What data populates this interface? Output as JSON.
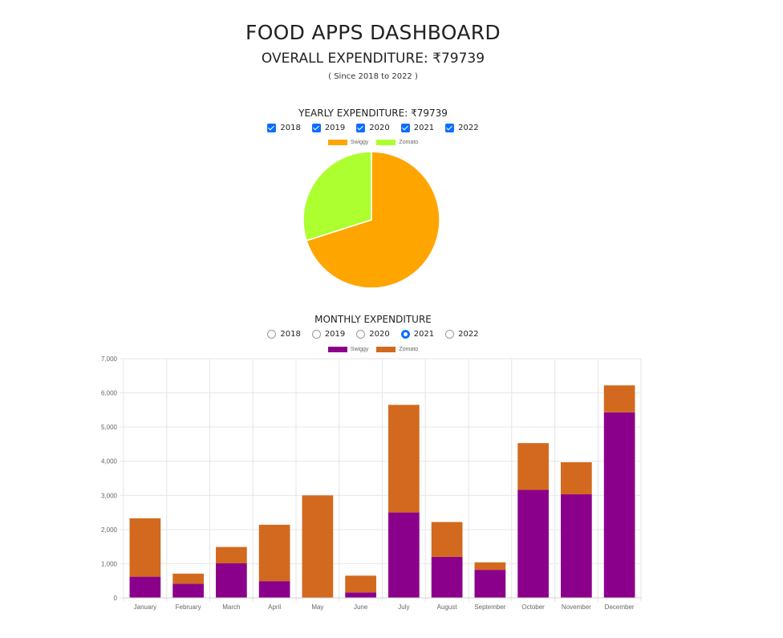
{
  "header": {
    "title": "FOOD APPS DASHBOARD",
    "overall": "OVERALL EXPENDITURE: ₹79739",
    "since": "( Since 2018 to 2022 )"
  },
  "yearly": {
    "title": "YEARLY EXPENDITURE: ₹79739",
    "years": [
      "2018",
      "2019",
      "2020",
      "2021",
      "2022"
    ],
    "checked": [
      true,
      true,
      true,
      true,
      true
    ]
  },
  "monthly": {
    "title": "MONTHLY EXPENDITURE",
    "years": [
      "2018",
      "2019",
      "2020",
      "2021",
      "2022"
    ],
    "selected": "2021"
  },
  "chart_data": [
    {
      "type": "pie",
      "labels": [
        "Swiggy",
        "Zomato"
      ],
      "values": [
        55880,
        23859
      ],
      "colors": [
        "#FFA500",
        "#ADFF2F"
      ],
      "legend": "top"
    },
    {
      "type": "bar",
      "stacked": true,
      "categories": [
        "January",
        "February",
        "March",
        "April",
        "May",
        "June",
        "July",
        "August",
        "September",
        "October",
        "November",
        "December"
      ],
      "series": [
        {
          "name": "Swiggy",
          "color": "#8B008B",
          "values": [
            620,
            410,
            1010,
            490,
            0,
            160,
            2500,
            1200,
            820,
            3160,
            3030,
            5430
          ]
        },
        {
          "name": "Zomato",
          "color": "#D2691E",
          "values": [
            1710,
            300,
            480,
            1650,
            3000,
            490,
            3150,
            1020,
            220,
            1370,
            940,
            790
          ]
        }
      ],
      "ylim": [
        0,
        7000
      ],
      "yticks": [
        "0",
        "1,000",
        "2,000",
        "3,000",
        "4,000",
        "5,000",
        "6,000",
        "7,000"
      ],
      "grid": true,
      "legend": "top"
    }
  ]
}
